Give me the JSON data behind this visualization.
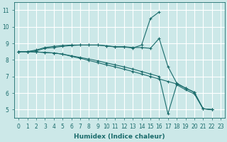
{
  "background_color": "#cce8e8",
  "grid_color": "#ffffff",
  "line_color": "#1a6b6b",
  "marker": "+",
  "marker_size": 3,
  "marker_lw": 0.8,
  "linewidth": 0.8,
  "xlabel": "Humidex (Indice chaleur)",
  "xlabel_fontsize": 6.5,
  "xlabel_bold": true,
  "xlim": [
    -0.5,
    23.5
  ],
  "ylim": [
    4.5,
    11.5
  ],
  "yticks": [
    5,
    6,
    7,
    8,
    9,
    10,
    11
  ],
  "xticks": [
    0,
    1,
    2,
    3,
    4,
    5,
    6,
    7,
    8,
    9,
    10,
    11,
    12,
    13,
    14,
    15,
    16,
    17,
    18,
    19,
    20,
    21,
    22,
    23
  ],
  "tick_labelsize": 5.5,
  "series": [
    {
      "x": [
        0,
        1,
        2,
        3,
        4,
        5,
        6,
        7,
        8,
        9,
        10,
        11,
        12,
        13,
        14,
        15,
        16,
        17,
        18,
        19,
        20,
        21,
        22
      ],
      "y": [
        8.5,
        8.5,
        8.6,
        8.75,
        8.82,
        8.87,
        8.9,
        8.9,
        8.9,
        8.9,
        8.85,
        8.8,
        8.8,
        8.75,
        8.75,
        8.7,
        9.3,
        7.6,
        6.6,
        6.3,
        6.05,
        5.05,
        5.0
      ]
    },
    {
      "x": [
        0,
        1,
        2,
        3,
        4,
        5,
        6,
        7,
        8,
        9,
        10,
        11,
        12,
        13,
        14,
        15,
        16
      ],
      "y": [
        8.5,
        8.5,
        8.55,
        8.7,
        8.75,
        8.82,
        8.87,
        8.9,
        8.9,
        8.9,
        8.85,
        8.78,
        8.78,
        8.72,
        8.9,
        10.5,
        10.9
      ]
    },
    {
      "x": [
        0,
        1,
        2,
        3,
        4,
        5,
        6,
        7,
        8,
        9,
        10,
        11,
        12,
        13,
        14,
        15,
        16,
        17,
        18,
        19,
        20,
        21,
        22
      ],
      "y": [
        8.5,
        8.5,
        8.48,
        8.45,
        8.42,
        8.35,
        8.25,
        8.15,
        8.05,
        7.95,
        7.82,
        7.7,
        7.58,
        7.45,
        7.3,
        7.15,
        7.0,
        4.75,
        6.5,
        6.2,
        5.95,
        5.05,
        5.0
      ]
    },
    {
      "x": [
        0,
        1,
        2,
        3,
        4,
        5,
        6,
        7,
        8,
        9,
        10,
        11,
        12,
        13,
        14,
        15,
        16,
        17,
        18,
        19,
        20,
        21,
        22
      ],
      "y": [
        8.5,
        8.5,
        8.48,
        8.45,
        8.42,
        8.35,
        8.22,
        8.1,
        7.97,
        7.84,
        7.7,
        7.58,
        7.44,
        7.3,
        7.15,
        7.0,
        6.85,
        6.7,
        6.55,
        6.3,
        6.05,
        5.05,
        5.0
      ]
    }
  ]
}
